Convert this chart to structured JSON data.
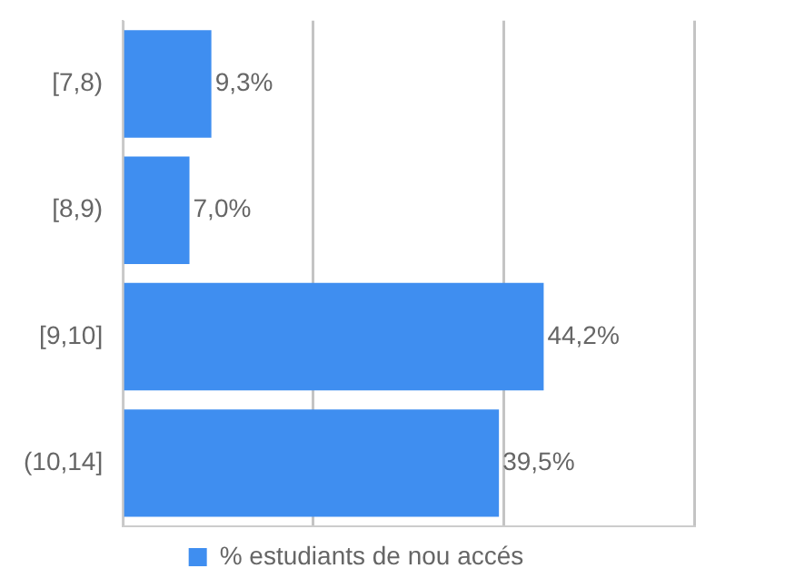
{
  "chart_data": {
    "type": "bar",
    "orientation": "horizontal",
    "categories": [
      "[7,8)",
      "[8,9)",
      "[9,10]",
      "(10,14]"
    ],
    "series": [
      {
        "name": "% estudiants de nou accés",
        "color": "#3f8ef0",
        "values": [
          9.3,
          7.0,
          44.2,
          39.5
        ],
        "value_labels": [
          "9,3%",
          "7,0%",
          "44,2%",
          "39,5%"
        ]
      }
    ],
    "xlim": [
      0,
      60
    ],
    "xticks": [
      {
        "value": 0,
        "label": null
      },
      {
        "value": 20,
        "label": null
      },
      {
        "value": 40,
        "label": null
      },
      {
        "value": 60,
        "label": null
      }
    ],
    "tick_labels": "y",
    "grid": "x",
    "legend": "bottom"
  }
}
